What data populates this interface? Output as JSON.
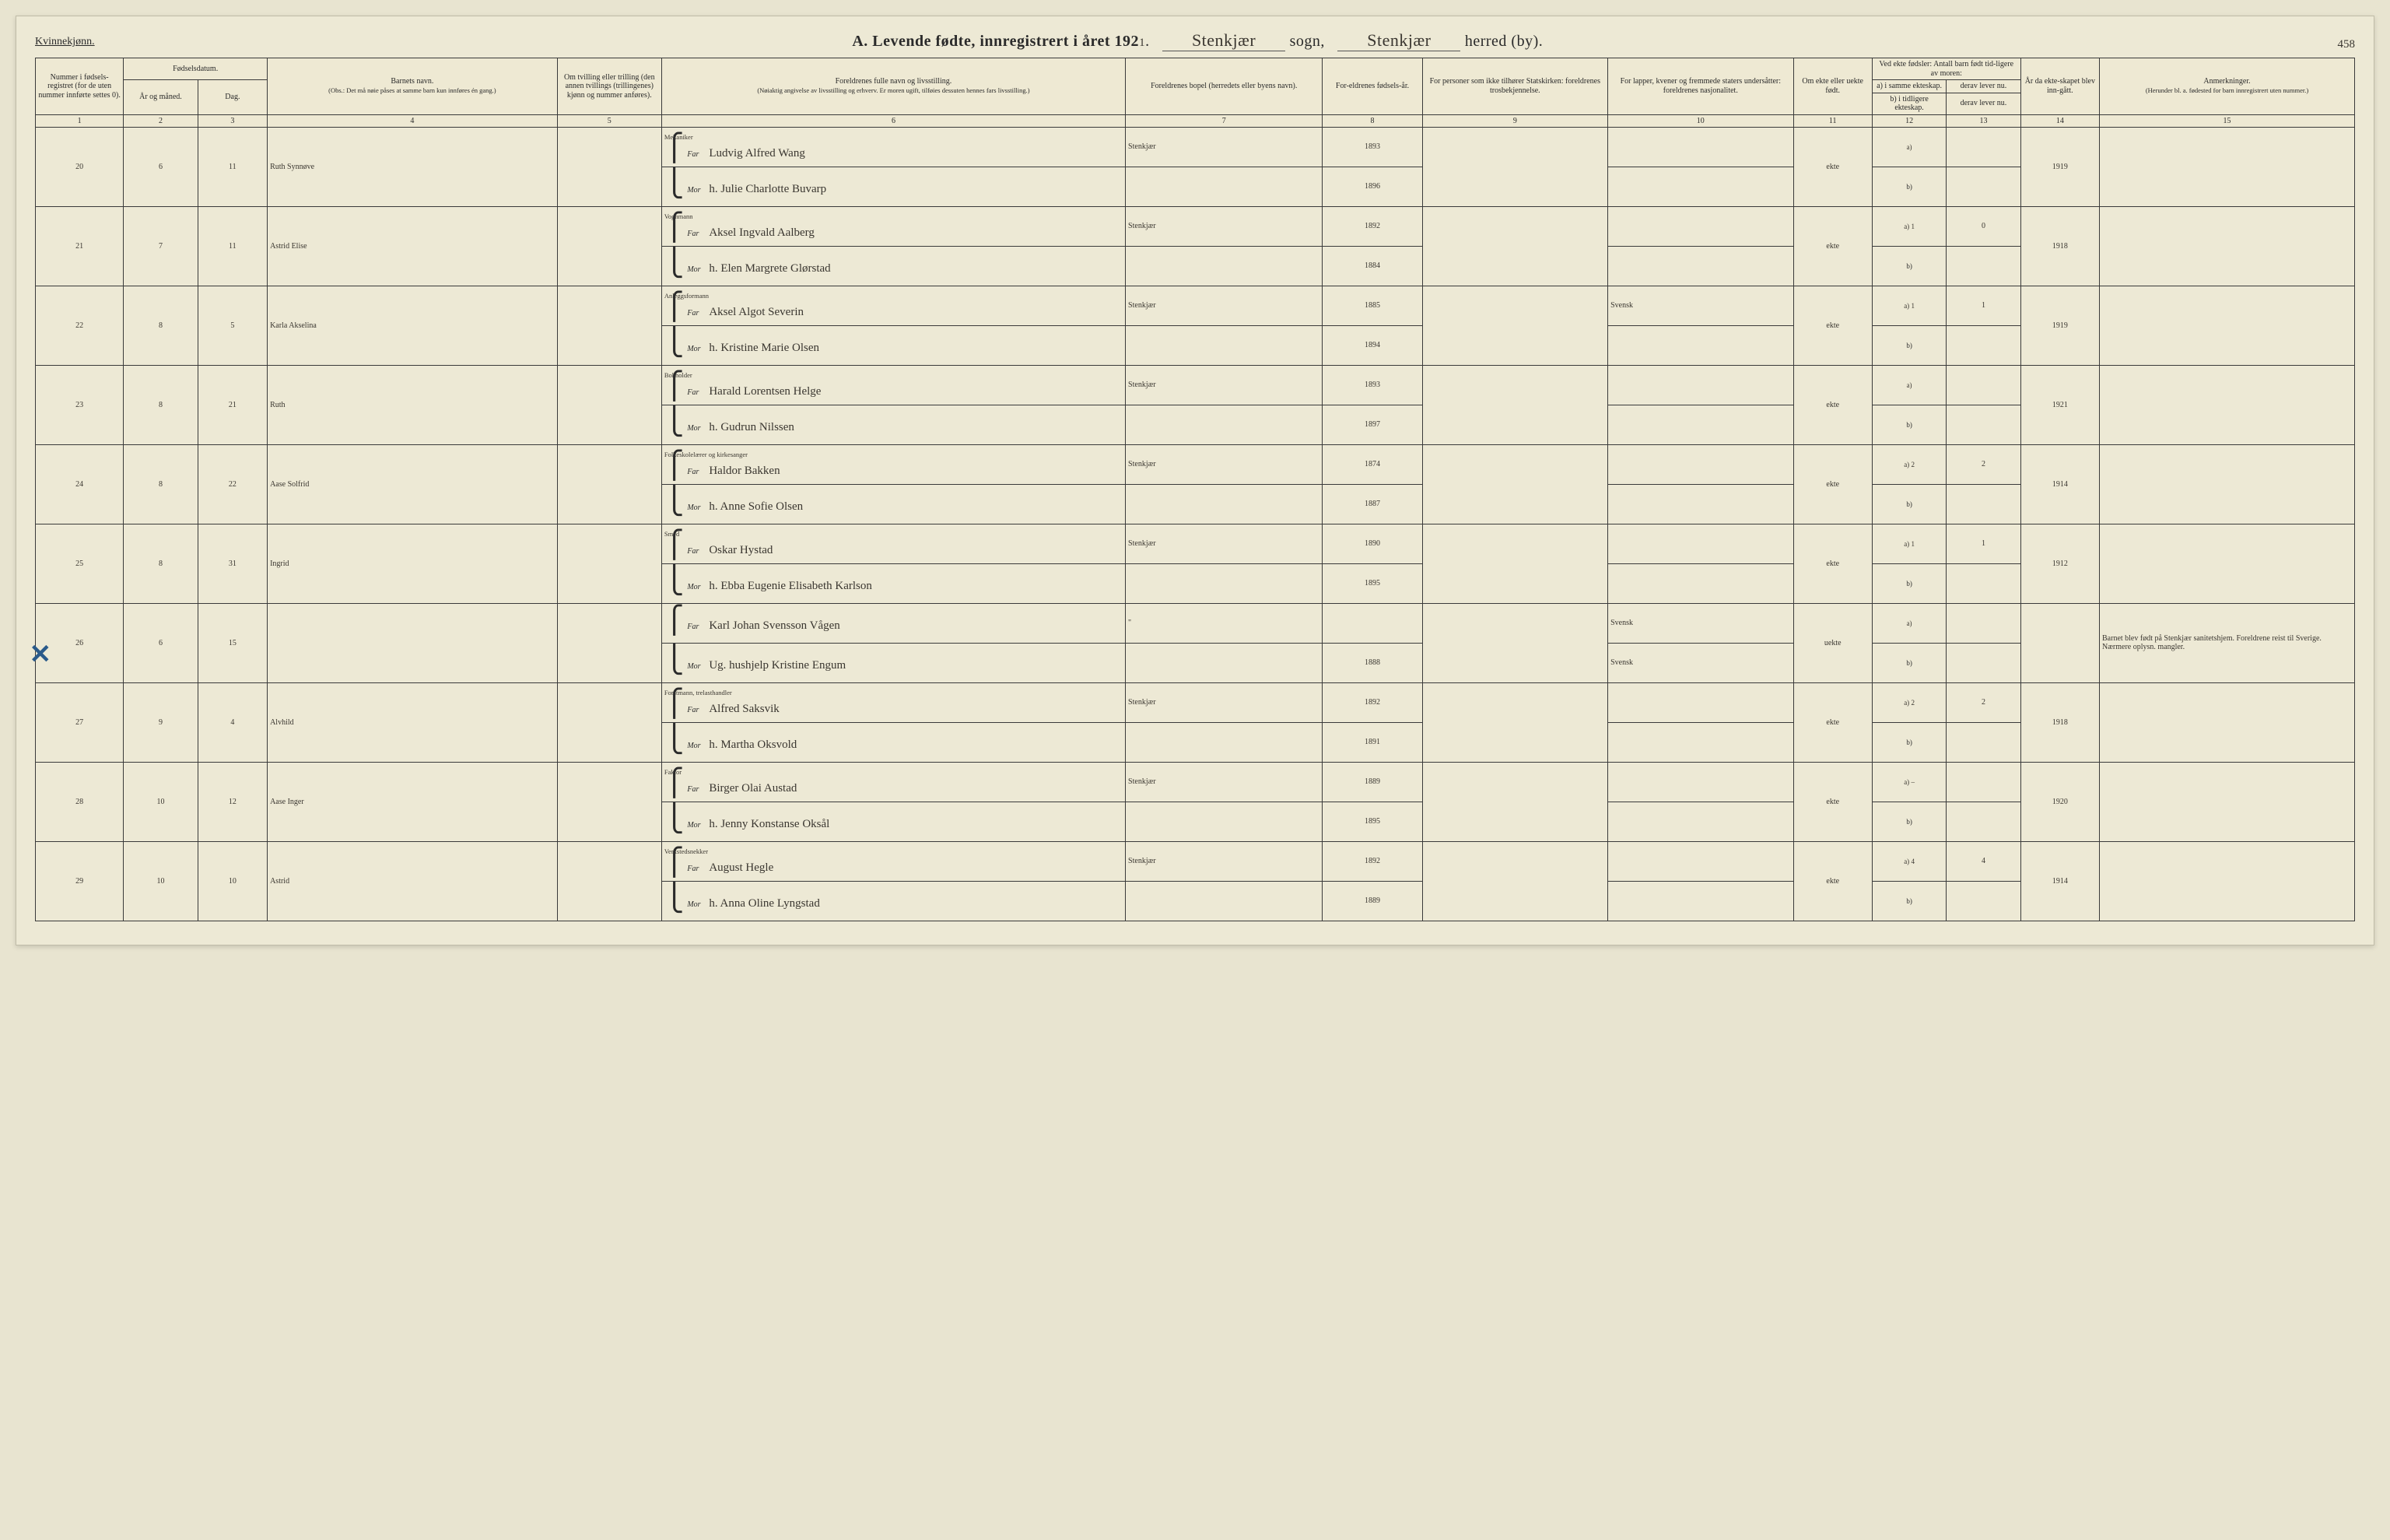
{
  "header": {
    "gender": "Kvinnekjønn.",
    "title_prefix": "A.  Levende fødte, innregistrert i året 192",
    "year_suffix": "1",
    "sogn_label": "sogn,",
    "herred_label": "herred (by).",
    "sogn_value": "Stenkjær",
    "herred_value": "Stenkjær",
    "page_number": "458"
  },
  "columns": {
    "c1": "Nummer i fødsels-registret (for de uten nummer innførte settes 0).",
    "c2_group": "Fødselsdatum.",
    "c2a": "År og måned.",
    "c2b": "Dag.",
    "c4": "Barnets navn.",
    "c4_note": "(Obs.: Det må nøie påses at samme barn kun innføres én gang.)",
    "c5": "Om tvilling eller trilling (den annen tvillings (trillingenes) kjønn og nummer anføres).",
    "c6": "Foreldrenes fulle navn og livsstilling.",
    "c6_note": "(Nøiaktig angivelse av livsstilling og erhverv. Er moren ugift, tilføies dessuten hennes fars livsstilling.)",
    "c7": "Foreldrenes bopel (herredets eller byens navn).",
    "c8": "For-eldrenes fødsels-år.",
    "c9": "For personer som ikke tilhører Statskirken: foreldrenes trosbekjennelse.",
    "c10": "For lapper, kvener og fremmede staters undersåtter: foreldrenes nasjonalitet.",
    "c11": "Om ekte eller uekte født.",
    "c12_group": "Ved ekte fødsler: Antall barn født tid-ligere av moren:",
    "c12a": "a) i samme ekteskap.",
    "c12b": "b) i tidligere ekteskap.",
    "c13a": "derav lever nu.",
    "c13b": "derav lever nu.",
    "c14": "År da ekte-skapet blev inn-gått.",
    "c15": "Anmerkninger.",
    "c15_note": "(Herunder bl. a. fødested for barn innregistrert uten nummer.)"
  },
  "colnums": [
    "1",
    "2",
    "3",
    "4",
    "5",
    "6",
    "7",
    "8",
    "9",
    "10",
    "11",
    "12",
    "13",
    "14",
    "15"
  ],
  "far_label": "Far",
  "mor_label": "Mor",
  "rows": [
    {
      "num": "20",
      "month": "6",
      "day": "11",
      "child": "Ruth Synnøve",
      "far_occ": "Mekaniker",
      "far": "Ludvig Alfred Wang",
      "mor": "h. Julie Charlotte Buvarp",
      "bopel": "Stenkjær",
      "far_year": "1893",
      "mor_year": "1896",
      "ekte": "ekte",
      "a": "",
      "a_live": "",
      "marr": "1919",
      "note": ""
    },
    {
      "num": "21",
      "month": "7",
      "day": "11",
      "child": "Astrid Elise",
      "far_occ": "Vognmann",
      "far": "Aksel Ingvald Aalberg",
      "mor": "h. Elen Margrete Glørstad",
      "bopel": "Stenkjær",
      "far_year": "1892",
      "mor_year": "1884",
      "ekte": "ekte",
      "a": "1",
      "a_live": "0",
      "marr": "1918",
      "note": ""
    },
    {
      "num": "22",
      "month": "8",
      "day": "5",
      "child": "Karla Akselina",
      "far_occ": "Anleggsformann",
      "far": "Aksel Algot Severin",
      "mor": "h. Kristine Marie Olsen",
      "bopel": "Stenkjær",
      "far_year": "1885",
      "mor_year": "1894",
      "nat": "Svensk",
      "ekte": "ekte",
      "a": "1",
      "a_live": "1",
      "marr": "1919",
      "note": ""
    },
    {
      "num": "23",
      "month": "8",
      "day": "21",
      "child": "Ruth",
      "far_occ": "Bokholder",
      "far": "Harald Lorentsen Helge",
      "mor": "h. Gudrun Nilssen",
      "bopel": "Stenkjær",
      "far_year": "1893",
      "mor_year": "1897",
      "ekte": "ekte",
      "a": "",
      "a_live": "",
      "marr": "1921",
      "note": ""
    },
    {
      "num": "24",
      "month": "8",
      "day": "22",
      "child": "Aase Solfrid",
      "far_occ": "Folkeskolelærer og kirkesanger",
      "far": "Haldor Bakken",
      "mor": "h. Anne Sofie Olsen",
      "bopel": "Stenkjær",
      "far_year": "1874",
      "mor_year": "1887",
      "ekte": "ekte",
      "a": "2",
      "a_live": "2",
      "marr": "1914",
      "note": ""
    },
    {
      "num": "25",
      "month": "8",
      "day": "31",
      "child": "Ingrid",
      "far_occ": "Smed",
      "far": "Oskar Hystad",
      "mor": "h. Ebba Eugenie Elisabeth Karlson",
      "bopel": "Stenkjær",
      "far_year": "1890",
      "mor_year": "1895",
      "ekte": "ekte",
      "a": "1",
      "a_live": "1",
      "marr": "1912",
      "note": ""
    },
    {
      "num": "26",
      "month": "6",
      "day": "15",
      "child": "",
      "far_occ": "",
      "far": "Karl Johan Svensson Vågen",
      "mor": "Ug. hushjelp Kristine Engum",
      "bopel": "\"",
      "far_year": "",
      "mor_year": "1888",
      "nat_far": "Svensk",
      "nat_mor": "Svensk",
      "ekte": "uekte",
      "a": "",
      "a_live": "",
      "marr": "",
      "note": "Barnet blev født på Stenkjær sanitetshjem. Foreldrene reist til Sverige. Nærmere oplysn. mangler.",
      "cross": true
    },
    {
      "num": "27",
      "month": "9",
      "day": "4",
      "child": "Alvhild",
      "far_occ": "Forstmann, trelasthandler",
      "far": "Alfred Saksvik",
      "mor": "h. Martha Oksvold",
      "bopel": "Stenkjær",
      "far_year": "1892",
      "mor_year": "1891",
      "ekte": "ekte",
      "a": "2",
      "a_live": "2",
      "marr": "1918",
      "note": ""
    },
    {
      "num": "28",
      "month": "10",
      "day": "12",
      "child": "Aase Inger",
      "far_occ": "Faktor",
      "far": "Birger Olai Austad",
      "mor": "h. Jenny Konstanse Oksål",
      "bopel": "Stenkjær",
      "far_year": "1889",
      "mor_year": "1895",
      "ekte": "ekte",
      "a": "–",
      "a_live": "",
      "marr": "1920",
      "note": ""
    },
    {
      "num": "29",
      "month": "10",
      "day": "10",
      "child": "Astrid",
      "far_occ": "Verkstedsnekker",
      "far": "August Hegle",
      "mor": "h. Anna Oline Lyngstad",
      "bopel": "Stenkjær",
      "far_year": "1892",
      "mor_year": "1889",
      "ekte": "ekte",
      "a": "4",
      "a_live": "4",
      "marr": "1914",
      "note": ""
    }
  ]
}
